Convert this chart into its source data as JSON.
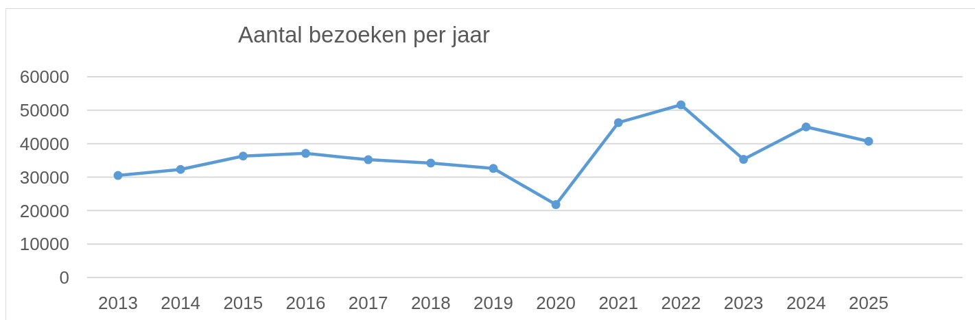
{
  "chart_data": {
    "type": "line",
    "title": "Aantal bezoeken per jaar",
    "categories": [
      "2013",
      "2014",
      "2015",
      "2016",
      "2017",
      "2018",
      "2019",
      "2020",
      "2021",
      "2022",
      "2023",
      "2024",
      "2025"
    ],
    "series": [
      {
        "color": "#5b9bd5",
        "values": [
          30500,
          32300,
          36300,
          37100,
          35200,
          34200,
          32600,
          21800,
          46300,
          51600,
          35300,
          45000,
          40700
        ]
      }
    ],
    "ylim": [
      0,
      60000
    ],
    "yticks": [
      0,
      10000,
      20000,
      30000,
      40000,
      50000,
      60000
    ],
    "grid": "y",
    "marker": "circle",
    "line_style": "solid"
  }
}
